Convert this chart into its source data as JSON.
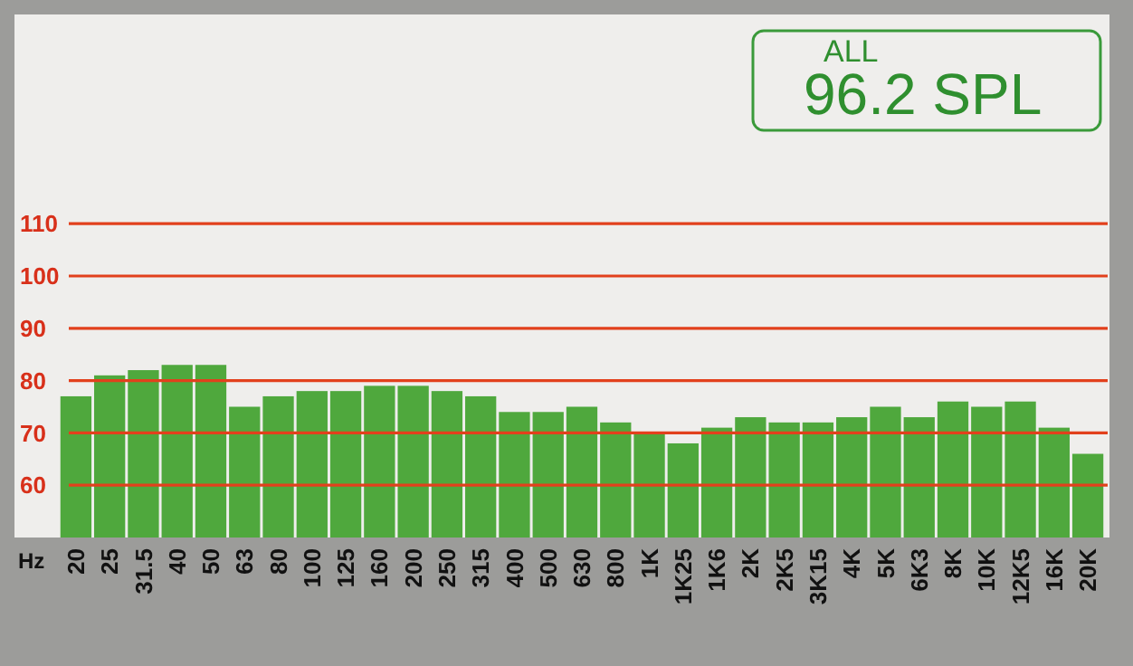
{
  "chart_data": {
    "type": "bar",
    "xlabel": "Hz",
    "categories": [
      "20",
      "25",
      "31.5",
      "40",
      "50",
      "63",
      "80",
      "100",
      "125",
      "160",
      "200",
      "250",
      "315",
      "400",
      "500",
      "630",
      "800",
      "1K",
      "1K25",
      "1K6",
      "2K",
      "2K5",
      "3K15",
      "4K",
      "5K",
      "6K3",
      "8K",
      "10K",
      "12K5",
      "16K",
      "20K"
    ],
    "values": [
      77,
      81,
      82,
      83,
      83,
      75,
      77,
      78,
      78,
      79,
      79,
      78,
      77,
      74,
      74,
      75,
      72,
      70,
      68,
      71,
      73,
      72,
      72,
      73,
      75,
      73,
      76,
      75,
      76,
      71,
      66
    ],
    "color": "#4fa83d",
    "ylim": [
      50,
      150
    ],
    "yticks": [
      60,
      70,
      80,
      90,
      100,
      110
    ],
    "grid": "y",
    "annotations": [
      "ALL",
      "96.2 SPL"
    ]
  }
}
